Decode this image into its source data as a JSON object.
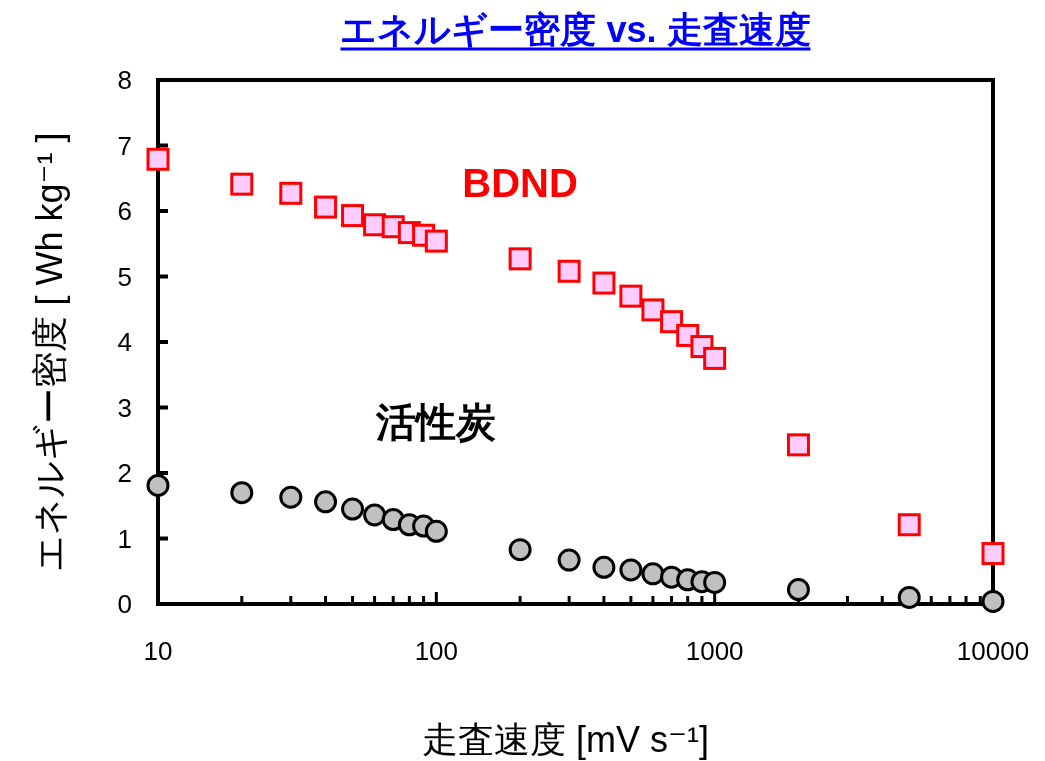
{
  "chart_data": {
    "type": "scatter",
    "title": "エネルギー密度 vs. 走査速度",
    "xlabel": "走査速度 [mV s⁻¹]",
    "ylabel": "エネルギー密度 [ Wh kg⁻¹ ]",
    "log": "x",
    "xlim": [
      10,
      10000
    ],
    "xticks": [
      10,
      100,
      1000,
      10000
    ],
    "ylim": [
      0,
      8
    ],
    "yticks": [
      0,
      1,
      2,
      3,
      4,
      5,
      6,
      7,
      8
    ],
    "x": [
      10,
      20,
      30,
      40,
      50,
      60,
      70,
      80,
      90,
      100,
      200,
      300,
      400,
      500,
      600,
      700,
      800,
      900,
      1000,
      2000,
      5000,
      10000
    ],
    "series": [
      {
        "name": "BDND",
        "color": "#ffccff",
        "marker": "square",
        "values": [
          6.79,
          6.41,
          6.27,
          6.06,
          5.93,
          5.79,
          5.76,
          5.67,
          5.63,
          5.54,
          5.27,
          5.08,
          4.9,
          4.7,
          4.49,
          4.31,
          4.1,
          3.93,
          3.75,
          2.43,
          1.21,
          0.77
        ]
      },
      {
        "name": "活性炭",
        "color": "#c0c0c0",
        "marker": "circle",
        "values": [
          1.81,
          1.7,
          1.63,
          1.56,
          1.45,
          1.36,
          1.29,
          1.21,
          1.19,
          1.11,
          0.83,
          0.67,
          0.56,
          0.52,
          0.46,
          0.41,
          0.37,
          0.34,
          0.33,
          0.22,
          0.1,
          0.04
        ]
      }
    ]
  }
}
